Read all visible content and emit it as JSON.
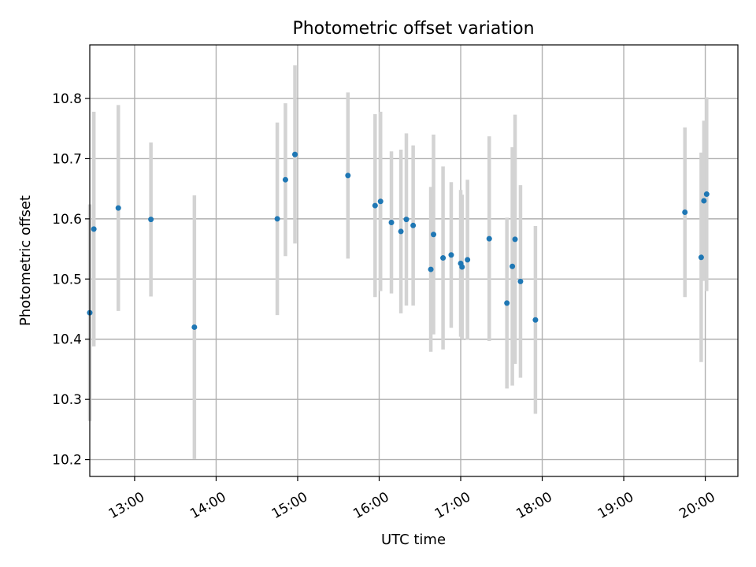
{
  "chart_data": {
    "type": "scatter",
    "title": "Photometric offset variation",
    "xlabel": "UTC time",
    "ylabel": "Photometric offset",
    "grid": true,
    "xlim": [
      "12:27",
      "20:24"
    ],
    "ylim": [
      10.172,
      10.889
    ],
    "xticks": [
      "13:00",
      "14:00",
      "15:00",
      "16:00",
      "17:00",
      "18:00",
      "19:00",
      "20:00"
    ],
    "yticks": [
      10.2,
      10.3,
      10.4,
      10.5,
      10.6,
      10.7,
      10.8
    ],
    "ytick_labels": [
      "10.2",
      "10.3",
      "10.4",
      "10.5",
      "10.6",
      "10.7",
      "10.8"
    ],
    "point_color": "#1f77b4",
    "errorbar_color": "#d3d3d3",
    "points": [
      {
        "time": "12:27",
        "y": 10.444,
        "err": 0.18
      },
      {
        "time": "12:30",
        "y": 10.583,
        "err": 0.195
      },
      {
        "time": "12:48",
        "y": 10.618,
        "err": 0.171
      },
      {
        "time": "13:12",
        "y": 10.599,
        "err": 0.128
      },
      {
        "time": "13:44",
        "y": 10.42,
        "err": 0.219
      },
      {
        "time": "14:45",
        "y": 10.6,
        "err": 0.16
      },
      {
        "time": "14:51",
        "y": 10.665,
        "err": 0.127
      },
      {
        "time": "14:58",
        "y": 10.707,
        "err": 0.148
      },
      {
        "time": "15:37",
        "y": 10.672,
        "err": 0.138
      },
      {
        "time": "15:57",
        "y": 10.622,
        "err": 0.152
      },
      {
        "time": "16:01",
        "y": 10.629,
        "err": 0.149
      },
      {
        "time": "16:09",
        "y": 10.594,
        "err": 0.118
      },
      {
        "time": "16:16",
        "y": 10.579,
        "err": 0.136
      },
      {
        "time": "16:20",
        "y": 10.599,
        "err": 0.143
      },
      {
        "time": "16:25",
        "y": 10.589,
        "err": 0.133
      },
      {
        "time": "16:38",
        "y": 10.516,
        "err": 0.137
      },
      {
        "time": "16:40",
        "y": 10.574,
        "err": 0.166
      },
      {
        "time": "16:47",
        "y": 10.535,
        "err": 0.152
      },
      {
        "time": "16:53",
        "y": 10.54,
        "err": 0.121
      },
      {
        "time": "17:00",
        "y": 10.526,
        "err": 0.122
      },
      {
        "time": "17:01",
        "y": 10.52,
        "err": 0.12
      },
      {
        "time": "17:05",
        "y": 10.532,
        "err": 0.133
      },
      {
        "time": "17:21",
        "y": 10.567,
        "err": 0.17
      },
      {
        "time": "17:34",
        "y": 10.46,
        "err": 0.142
      },
      {
        "time": "17:38",
        "y": 10.521,
        "err": 0.198
      },
      {
        "time": "17:40",
        "y": 10.566,
        "err": 0.207
      },
      {
        "time": "17:44",
        "y": 10.496,
        "err": 0.16
      },
      {
        "time": "17:55",
        "y": 10.432,
        "err": 0.156
      },
      {
        "time": "19:45",
        "y": 10.611,
        "err": 0.141
      },
      {
        "time": "19:57",
        "y": 10.536,
        "err": 0.174
      },
      {
        "time": "19:59",
        "y": 10.63,
        "err": 0.133
      },
      {
        "time": "20:01",
        "y": 10.641,
        "err": 0.161
      }
    ]
  }
}
